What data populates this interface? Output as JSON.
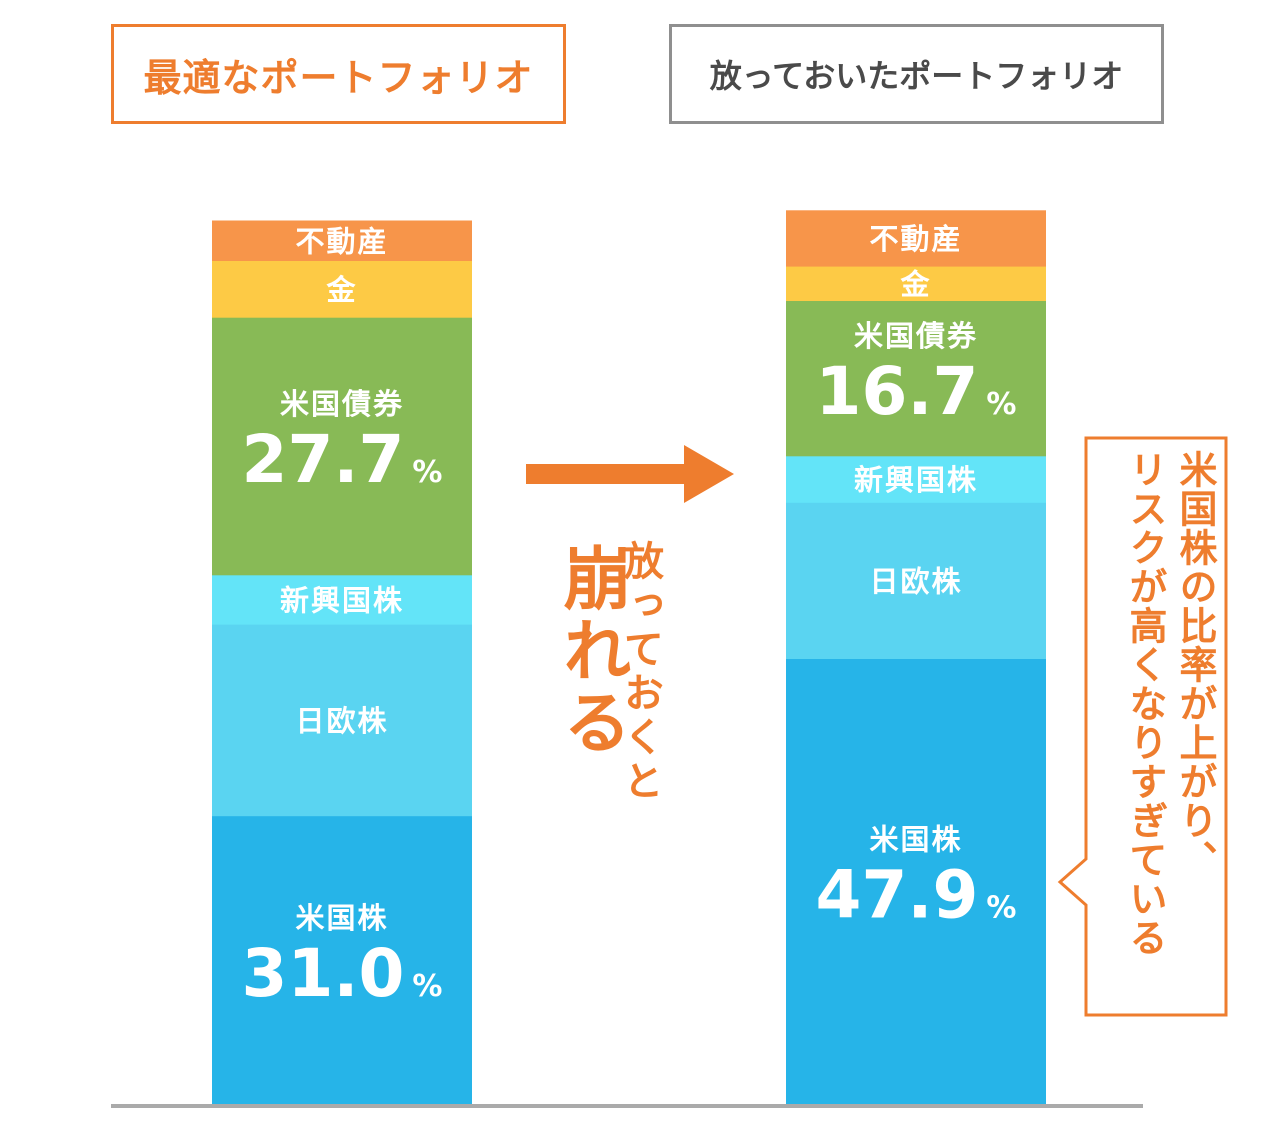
{
  "titles": {
    "left": "最適なポートフォリオ",
    "right": "放っておいたポートフォリオ"
  },
  "middle": {
    "small_vertical": "放っておくと",
    "big_vertical": "崩れる"
  },
  "callout": {
    "line1": "米国株の比率が上がり、",
    "line2": "リスクが高くなりすぎている"
  },
  "colors": {
    "orange": "#EE7D2E",
    "gray_border": "#8F8F8F",
    "baseline": "#AAAAAA",
    "real_estate": "#F7954A",
    "gold": "#FDCA45",
    "us_bonds": "#88BA56",
    "emerging": "#63E4F8",
    "jp_eu": "#5AD4F1",
    "us_stocks": "#26B4E8"
  },
  "chart_data": {
    "type": "bar",
    "stacked": true,
    "categories": [
      "最適なポートフォリオ",
      "放っておいたポートフォリオ"
    ],
    "series": [
      {
        "name": "米国株",
        "values": [
          31.0,
          47.9
        ],
        "labeled": [
          true,
          true
        ],
        "color": "#26B4E8"
      },
      {
        "name": "日欧株",
        "values": [
          20.6,
          16.8
        ],
        "labeled": [
          false,
          false
        ],
        "color": "#5AD4F1"
      },
      {
        "name": "新興国株",
        "values": [
          5.3,
          5.0
        ],
        "labeled": [
          false,
          false
        ],
        "color": "#63E4F8"
      },
      {
        "name": "米国債券",
        "values": [
          27.7,
          16.7
        ],
        "labeled": [
          true,
          true
        ],
        "color": "#88BA56"
      },
      {
        "name": "金",
        "values": [
          6.1,
          3.7
        ],
        "labeled": [
          false,
          false
        ],
        "color": "#FDCA45"
      },
      {
        "name": "不動産",
        "values": [
          4.3,
          6.0
        ],
        "labeled": [
          false,
          false
        ],
        "color": "#F7954A"
      }
    ],
    "value_suffix": "%",
    "ylim": [
      0,
      100
    ]
  }
}
